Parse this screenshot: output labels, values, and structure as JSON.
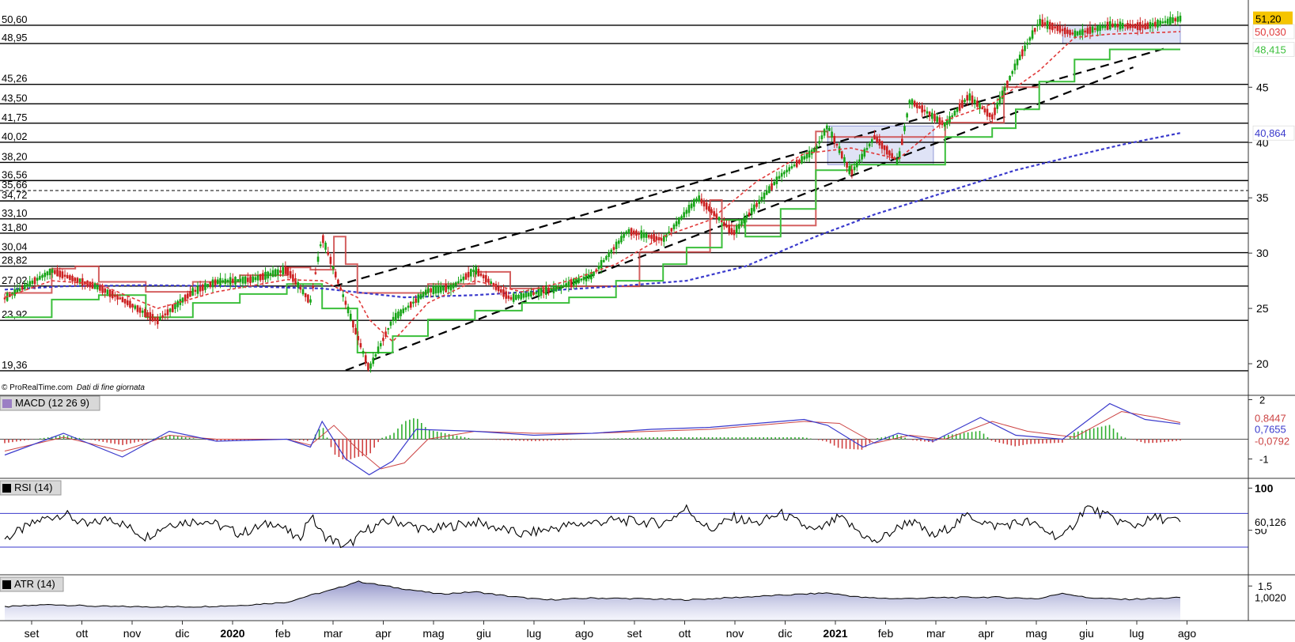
{
  "copyright": "© ProRealTime.com",
  "data_note": "Dati di fine giornata",
  "chart_data": [
    {
      "type": "candlestick",
      "panel": "price",
      "ylim": [
        18,
        52.6
      ],
      "x_ticks": [
        "set",
        "ott",
        "nov",
        "dic",
        "2020",
        "feb",
        "mar",
        "apr",
        "mag",
        "giu",
        "lug",
        "ago",
        "set",
        "ott",
        "nov",
        "dic",
        "2021",
        "feb",
        "mar",
        "apr",
        "mag",
        "giu",
        "lug",
        "ago"
      ],
      "y_ticks": [
        20,
        25,
        30,
        35,
        40,
        45
      ],
      "y_tick_labels": [
        "20",
        "25",
        "30",
        "35",
        "40",
        "45"
      ],
      "levels": [
        50.6,
        48.95,
        45.26,
        43.5,
        41.75,
        40.02,
        38.2,
        36.56,
        35.66,
        34.72,
        33.1,
        31.8,
        30.04,
        28.82,
        27.02,
        23.92,
        19.36
      ],
      "level_labels": [
        "50,60",
        "48,95",
        "45,26",
        "43,50",
        "41,75",
        "40,02",
        "38,20",
        "36,56",
        "35,66",
        "34,72",
        "33,10",
        "31,80",
        "30,04",
        "28,82",
        "27,02",
        "23,92",
        "19,36"
      ],
      "dashed_level": 35.66,
      "last_price": {
        "value": 51.2,
        "label": "51,20",
        "color": "#f5c400"
      },
      "right_labels": [
        {
          "value": 50.03,
          "label": "50,030",
          "color": "#e03a3a"
        },
        {
          "value": 48.415,
          "label": "48,415",
          "color": "#3bbf3b"
        },
        {
          "value": 40.864,
          "label": "40,864",
          "color": "#3a3acc"
        }
      ],
      "channel": {
        "upper": [
          [
            0.28,
            27.0
          ],
          [
            0.99,
            48.6
          ]
        ],
        "lower": [
          [
            0.29,
            19.4
          ],
          [
            0.96,
            46.8
          ]
        ]
      },
      "channel_color": "#000000",
      "series": [
        {
          "name": "Prezzo",
          "color_up": "#16a416",
          "color_down": "#cc2020",
          "x": [
            0.0,
            0.04,
            0.06,
            0.08,
            0.1,
            0.13,
            0.16,
            0.18,
            0.21,
            0.24,
            0.26,
            0.27,
            0.29,
            0.31,
            0.33,
            0.36,
            0.38,
            0.4,
            0.43,
            0.47,
            0.5,
            0.53,
            0.56,
            0.59,
            0.62,
            0.66,
            0.69,
            0.7,
            0.72,
            0.74,
            0.76,
            0.77,
            0.8,
            0.82,
            0.84,
            0.86,
            0.88,
            0.91,
            0.94,
            0.97,
            1.0
          ],
          "y": [
            25.9,
            28.4,
            27.6,
            26.9,
            25.8,
            23.9,
            26.5,
            27.4,
            27.6,
            28.5,
            25.6,
            31.5,
            25.5,
            19.5,
            24.0,
            26.6,
            26.9,
            28.5,
            25.9,
            26.8,
            28.0,
            32.0,
            31.2,
            35.0,
            31.8,
            37.0,
            39.4,
            41.5,
            37.2,
            40.5,
            38.2,
            43.8,
            41.6,
            44.2,
            42.3,
            47.0,
            50.9,
            49.8,
            50.6,
            50.5,
            51.2
          ]
        },
        {
          "name": "Media mobile 20",
          "style": "dashed",
          "color": "#e03a3a",
          "x": [
            0.0,
            0.04,
            0.08,
            0.13,
            0.18,
            0.24,
            0.27,
            0.3,
            0.31,
            0.33,
            0.36,
            0.4,
            0.44,
            0.48,
            0.52,
            0.56,
            0.6,
            0.64,
            0.68,
            0.72,
            0.76,
            0.8,
            0.84,
            0.88,
            0.91,
            0.94,
            0.97,
            1.0
          ],
          "y": [
            26.0,
            27.5,
            27.2,
            25.0,
            26.5,
            27.6,
            27.5,
            26.0,
            24.0,
            22.0,
            25.5,
            27.5,
            26.5,
            27.5,
            29.0,
            31.5,
            33.0,
            36.5,
            39.0,
            39.5,
            38.5,
            42.0,
            43.5,
            46.5,
            49.5,
            49.8,
            49.9,
            50.03
          ]
        },
        {
          "name": "Media mobile 200",
          "style": "dashed",
          "color": "#3a3acc",
          "x": [
            0.0,
            0.05,
            0.12,
            0.2,
            0.27,
            0.34,
            0.4,
            0.46,
            0.52,
            0.58,
            0.63,
            0.69,
            0.74,
            0.8,
            0.86,
            0.91,
            0.95,
            1.0
          ],
          "y": [
            26.7,
            27.0,
            27.1,
            27.0,
            26.8,
            26.0,
            26.2,
            26.6,
            27.0,
            27.5,
            28.8,
            31.5,
            33.5,
            35.5,
            37.5,
            38.8,
            39.8,
            40.864
          ]
        },
        {
          "name": "Stop superiore",
          "style": "step",
          "color": "#cc4444",
          "x": [
            0.0,
            0.04,
            0.06,
            0.08,
            0.12,
            0.16,
            0.2,
            0.24,
            0.26,
            0.28,
            0.29,
            0.3,
            0.33,
            0.36,
            0.4,
            0.43,
            0.47,
            0.54,
            0.6,
            0.61,
            0.63,
            0.69,
            0.7,
            0.74,
            0.8,
            0.85,
            0.88
          ],
          "y": [
            26.4,
            28.6,
            28.8,
            27.4,
            26.5,
            27.4,
            28.0,
            28.7,
            28.5,
            31.5,
            29.0,
            26.4,
            26.4,
            27.2,
            28.3,
            26.8,
            27.0,
            30.1,
            34.8,
            32.5,
            32.5,
            41.0,
            40.5,
            40.5,
            41.8,
            45.0,
            45.0
          ]
        },
        {
          "name": "Stop inferiore",
          "style": "step",
          "color": "#3bbf3b",
          "x": [
            0.0,
            0.04,
            0.08,
            0.12,
            0.16,
            0.2,
            0.24,
            0.27,
            0.3,
            0.33,
            0.36,
            0.4,
            0.44,
            0.48,
            0.52,
            0.56,
            0.58,
            0.61,
            0.63,
            0.66,
            0.69,
            0.72,
            0.76,
            0.8,
            0.84,
            0.86,
            0.88,
            0.91,
            0.94,
            1.0
          ],
          "y": [
            24.2,
            25.8,
            26.2,
            24.2,
            25.5,
            26.3,
            27.2,
            25.0,
            21.0,
            22.5,
            24.0,
            24.8,
            25.5,
            26.0,
            27.5,
            29.0,
            30.5,
            33.0,
            31.5,
            34.0,
            37.5,
            38.0,
            38.0,
            40.5,
            41.3,
            43.0,
            45.5,
            47.5,
            48.415,
            48.415
          ]
        }
      ],
      "box_zones": [
        {
          "from": 0.7,
          "to": 0.79,
          "low": 38.0,
          "high": 41.5
        },
        {
          "from": 0.9,
          "to": 1.0,
          "low": 48.95,
          "high": 50.6
        }
      ]
    },
    {
      "type": "macd",
      "panel": "macd",
      "title": "MACD (12 26 9)",
      "ylim": [
        -1.9,
        2.1
      ],
      "y_ticks": [
        2,
        -1
      ],
      "y_tick_labels": [
        "2",
        "-1"
      ],
      "right_labels": [
        {
          "value": 0.8447,
          "label": "0,8447",
          "color": "#cc4444"
        },
        {
          "value": 0.7655,
          "label": "0,7655",
          "color": "#3a3acc"
        },
        {
          "value": -0.0792,
          "label": "-0,0792",
          "color": "#cc4444"
        }
      ],
      "series": [
        {
          "name": "MACD",
          "color": "#3a3acc",
          "x": [
            0.0,
            0.05,
            0.1,
            0.14,
            0.18,
            0.24,
            0.26,
            0.27,
            0.29,
            0.31,
            0.33,
            0.35,
            0.4,
            0.45,
            0.5,
            0.55,
            0.6,
            0.64,
            0.68,
            0.7,
            0.73,
            0.76,
            0.79,
            0.83,
            0.86,
            0.9,
            0.94,
            0.97,
            1.0
          ],
          "y": [
            -0.8,
            0.3,
            -0.9,
            0.4,
            -0.1,
            0.0,
            -0.4,
            0.9,
            -1.0,
            -1.8,
            -1.1,
            0.5,
            0.4,
            0.2,
            0.3,
            0.5,
            0.6,
            0.8,
            1.0,
            0.7,
            -0.4,
            0.3,
            -0.1,
            1.1,
            0.2,
            0.0,
            1.8,
            1.0,
            0.77
          ]
        },
        {
          "name": "Segnale",
          "color": "#cc4444",
          "x": [
            0.0,
            0.05,
            0.1,
            0.14,
            0.18,
            0.24,
            0.26,
            0.28,
            0.3,
            0.32,
            0.34,
            0.36,
            0.4,
            0.45,
            0.5,
            0.55,
            0.6,
            0.64,
            0.68,
            0.71,
            0.74,
            0.77,
            0.8,
            0.84,
            0.87,
            0.91,
            0.95,
            0.98,
            1.0
          ],
          "y": [
            -0.6,
            0.1,
            -0.6,
            0.2,
            0.0,
            0.0,
            -0.3,
            0.7,
            -0.5,
            -1.5,
            -1.2,
            0.0,
            0.4,
            0.3,
            0.3,
            0.4,
            0.5,
            0.7,
            0.9,
            0.8,
            -0.2,
            0.2,
            0.0,
            0.9,
            0.4,
            0.1,
            1.4,
            1.1,
            0.84
          ]
        }
      ]
    },
    {
      "type": "line",
      "panel": "rsi",
      "title": "RSI (14)",
      "ylim": [
        0,
        105
      ],
      "y_ticks": [
        100,
        50
      ],
      "y_tick_labels": [
        "100",
        "50"
      ],
      "bands": [
        70,
        30
      ],
      "last_value": {
        "value": 60.126,
        "label": "60,126"
      },
      "series": [
        {
          "name": "RSI",
          "color": "#000000",
          "x": [
            0.0,
            0.03,
            0.05,
            0.07,
            0.09,
            0.12,
            0.14,
            0.17,
            0.2,
            0.23,
            0.25,
            0.26,
            0.27,
            0.29,
            0.31,
            0.33,
            0.36,
            0.4,
            0.44,
            0.48,
            0.52,
            0.56,
            0.58,
            0.6,
            0.62,
            0.64,
            0.66,
            0.69,
            0.71,
            0.74,
            0.77,
            0.79,
            0.82,
            0.84,
            0.87,
            0.9,
            0.92,
            0.94,
            0.96,
            0.98,
            1.0
          ],
          "y": [
            40,
            62,
            70,
            55,
            65,
            42,
            58,
            62,
            46,
            60,
            38,
            68,
            45,
            30,
            52,
            62,
            50,
            60,
            45,
            56,
            62,
            58,
            76,
            50,
            65,
            58,
            70,
            48,
            65,
            35,
            62,
            42,
            68,
            55,
            60,
            40,
            78,
            65,
            55,
            65,
            60.126
          ]
        }
      ]
    },
    {
      "type": "area",
      "panel": "atr",
      "title": "ATR (14)",
      "ylim": [
        0,
        1.78
      ],
      "y_ticks": [
        1.5
      ],
      "y_tick_labels": [
        "1,5"
      ],
      "last_value": {
        "value": 1.002,
        "label": "1,0020"
      },
      "series": [
        {
          "name": "ATR",
          "color": "#000000",
          "fill": "#8a8cc4",
          "x": [
            0.0,
            0.04,
            0.08,
            0.12,
            0.16,
            0.2,
            0.24,
            0.26,
            0.28,
            0.3,
            0.31,
            0.33,
            0.35,
            0.37,
            0.4,
            0.43,
            0.46,
            0.5,
            0.54,
            0.58,
            0.62,
            0.66,
            0.7,
            0.73,
            0.76,
            0.8,
            0.84,
            0.88,
            0.9,
            0.92,
            0.95,
            0.98,
            1.0
          ],
          "y": [
            0.6,
            0.7,
            0.62,
            0.6,
            0.6,
            0.66,
            0.8,
            1.1,
            1.35,
            1.7,
            1.62,
            1.45,
            1.3,
            1.15,
            1.25,
            1.05,
            0.9,
            0.98,
            0.95,
            0.9,
            1.0,
            1.1,
            1.2,
            1.0,
            0.95,
            1.0,
            1.02,
            0.95,
            1.2,
            1.0,
            0.92,
            0.96,
            1.002
          ]
        }
      ]
    }
  ]
}
